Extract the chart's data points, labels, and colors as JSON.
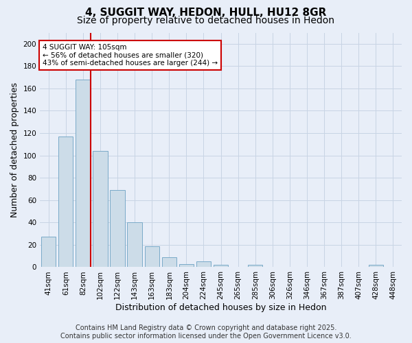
{
  "title_line1": "4, SUGGIT WAY, HEDON, HULL, HU12 8GR",
  "title_line2": "Size of property relative to detached houses in Hedon",
  "categories": [
    "41sqm",
    "61sqm",
    "82sqm",
    "102sqm",
    "122sqm",
    "143sqm",
    "163sqm",
    "183sqm",
    "204sqm",
    "224sqm",
    "245sqm",
    "265sqm",
    "285sqm",
    "306sqm",
    "326sqm",
    "346sqm",
    "367sqm",
    "387sqm",
    "407sqm",
    "428sqm",
    "448sqm"
  ],
  "values": [
    27,
    117,
    168,
    104,
    69,
    40,
    19,
    9,
    3,
    5,
    2,
    0,
    2,
    0,
    0,
    0,
    0,
    0,
    0,
    2,
    0
  ],
  "bar_color": "#ccdce8",
  "bar_edge_color": "#7aaac8",
  "vline_x_index": 2,
  "vline_color": "#cc0000",
  "annotation_text": "4 SUGGIT WAY: 105sqm\n← 56% of detached houses are smaller (320)\n43% of semi-detached houses are larger (244) →",
  "annotation_box_color": "#ffffff",
  "annotation_box_edge": "#cc0000",
  "ylabel": "Number of detached properties",
  "xlabel": "Distribution of detached houses by size in Hedon",
  "ylim": [
    0,
    210
  ],
  "yticks": [
    0,
    20,
    40,
    60,
    80,
    100,
    120,
    140,
    160,
    180,
    200
  ],
  "grid_color": "#c8d4e4",
  "background_color": "#e8eef8",
  "footer_text": "Contains HM Land Registry data © Crown copyright and database right 2025.\nContains public sector information licensed under the Open Government Licence v3.0.",
  "title_fontsize": 11,
  "subtitle_fontsize": 10,
  "axis_label_fontsize": 9,
  "tick_fontsize": 7.5,
  "footer_fontsize": 7
}
